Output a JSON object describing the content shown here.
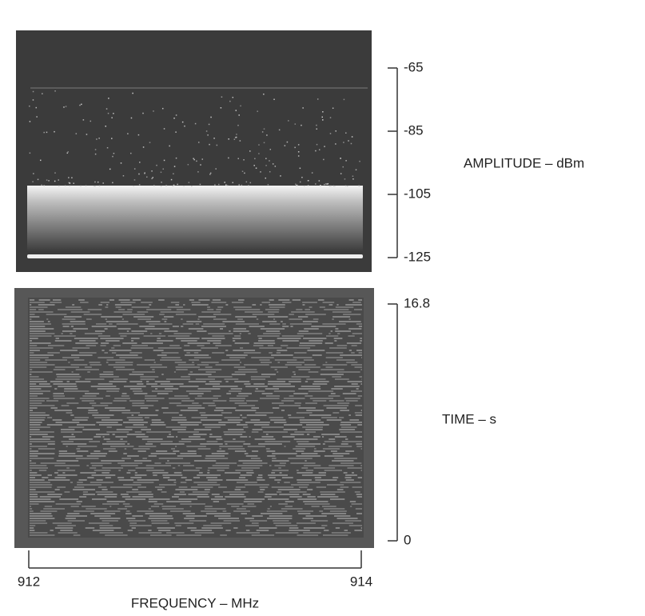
{
  "chart_data": [
    {
      "type": "spectrum",
      "ylabel": "AMPLITUDE – dBm",
      "ylim": [
        -125,
        -65
      ],
      "yticks": [
        -65,
        -85,
        -105,
        -125
      ]
    },
    {
      "type": "waterfall",
      "ylabel": "TIME – s",
      "ylim": [
        0,
        16.8
      ],
      "yticks": [
        16.8,
        0
      ],
      "xlabel": "FREQUENCY – MHz",
      "xlim": [
        912,
        914
      ],
      "xticks": [
        912,
        914
      ]
    }
  ]
}
